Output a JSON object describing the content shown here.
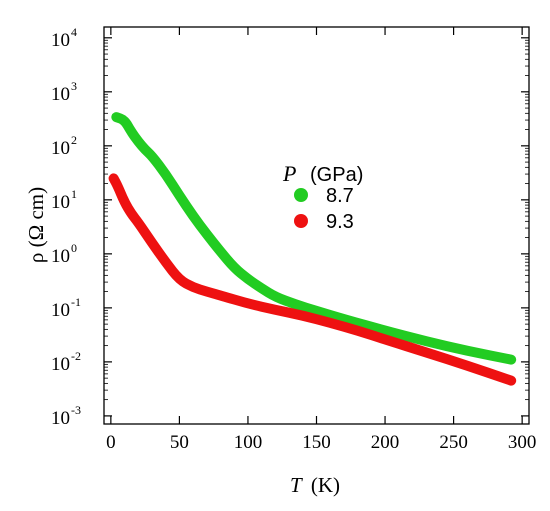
{
  "chart_data": {
    "type": "line",
    "xlabel": "(K)",
    "xlabel_var": "T",
    "ylabel": "ρ (Ω cm)",
    "xlim": [
      -5,
      305
    ],
    "ylim_log10": [
      -3.15,
      4.2
    ],
    "y_scale": "log",
    "x_ticks": [
      0,
      50,
      100,
      150,
      200,
      250,
      300
    ],
    "y_ticks": [
      {
        "base": "10",
        "exp": "-3",
        "log": -3
      },
      {
        "base": "10",
        "exp": "-2",
        "log": -2
      },
      {
        "base": "10",
        "exp": "-1",
        "log": -1
      },
      {
        "base": "10",
        "exp": "0",
        "log": 0
      },
      {
        "base": "10",
        "exp": "1",
        "log": 1
      },
      {
        "base": "10",
        "exp": "2",
        "log": 2
      },
      {
        "base": "10",
        "exp": "3",
        "log": 3
      },
      {
        "base": "10",
        "exp": "4",
        "log": 4
      }
    ],
    "legend": {
      "title_var": "P",
      "title_unit": "(GPa)",
      "placement": "center"
    },
    "series": [
      {
        "name": "8.7",
        "color": "#22cc22",
        "x": [
          4,
          10,
          15,
          20,
          25,
          30,
          40,
          50,
          60,
          70,
          80,
          90,
          100,
          110,
          120,
          135,
          150,
          170,
          200,
          230,
          260,
          292
        ],
        "y": [
          340,
          300,
          180,
          120,
          85,
          65,
          30,
          12,
          5,
          2.3,
          1.1,
          0.55,
          0.34,
          0.23,
          0.16,
          0.115,
          0.088,
          0.062,
          0.038,
          0.024,
          0.016,
          0.011
        ]
      },
      {
        "name": "9.3",
        "color": "#ee1111",
        "x": [
          2,
          5,
          10,
          15,
          20,
          30,
          40,
          50,
          60,
          70,
          80,
          100,
          120,
          140,
          160,
          180,
          200,
          230,
          260,
          292
        ],
        "y": [
          25,
          18,
          9,
          5.5,
          3.8,
          1.6,
          0.7,
          0.33,
          0.24,
          0.2,
          0.17,
          0.12,
          0.092,
          0.072,
          0.053,
          0.038,
          0.026,
          0.015,
          0.0085,
          0.0045
        ]
      }
    ]
  }
}
